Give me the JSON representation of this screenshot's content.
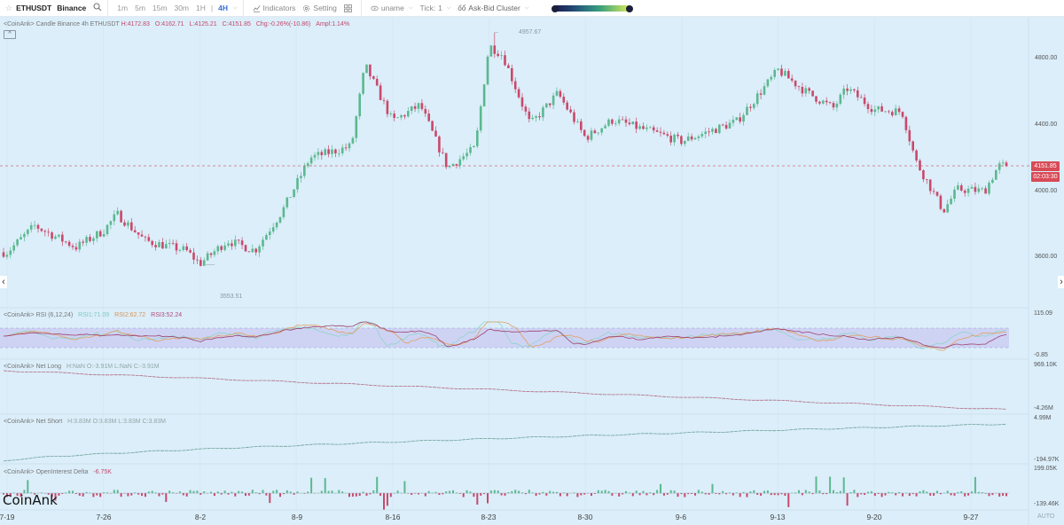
{
  "toolbar": {
    "star_icon": "☆",
    "symbol": "ETHUSDT",
    "exchange": "Binance",
    "search_icon": "search-icon",
    "timeframes": [
      "1m",
      "5m",
      "15m",
      "30m",
      "1H",
      "4H"
    ],
    "active_timeframe": "4H",
    "indicators_label": "Indicators",
    "setting_label": "Setting",
    "layout_icon": "grid-icon",
    "uname_label": "uname",
    "tick_label": "Tick:",
    "tick_value": "1",
    "cluster_label": "Ask-Bid Cluster"
  },
  "panes": {
    "candle": {
      "legend_prefix": "<CoinAnk> Candle  Binance 4h ETHUSDT",
      "h": "H:4172.83",
      "o": "O:4162.71",
      "l": "L:4125.21",
      "c": "C:4151.85",
      "chg": "Chg:-0.26%(-10.86)",
      "ampl": "Ampl:1.14%",
      "collapse_icon": "^",
      "high_label": "4957.67",
      "low_label": "3553.51",
      "last_price": "4151.85",
      "countdown": "02:03:30",
      "axis": [
        "4800.00",
        "4400.00",
        "4000.00",
        "3600.00"
      ]
    },
    "rsi": {
      "legend_prefix": "<CoinAnk> RSI  (6,12,24)",
      "rsi1": "RSI1:71.09",
      "rsi2": "RSI2:62.72",
      "rsi3": "RSI3:52.24",
      "axis_top": "115.09",
      "axis_bottom": "-0.85"
    },
    "net_long": {
      "legend_prefix": "<CoinAnk> Net Long",
      "values": "H:NaN  O:-3.91M  L:NaN  C:-3.91M",
      "axis_top": "969.10K",
      "axis_bottom": "-4.26M"
    },
    "net_short": {
      "legend_prefix": "<CoinAnk> Net Short",
      "values": "H:3.83M  O:3.83M  L:3.83M  C:3.83M",
      "axis_top": "4.99M",
      "axis_bottom": "-194.97K"
    },
    "oi_delta": {
      "legend_prefix": "<CoinAnk> OpenInterest Delta",
      "value": "-6.75K",
      "axis_top": "199.05K",
      "axis_bottom": "-139.46K"
    }
  },
  "x_axis": [
    "7-19",
    "7-26",
    "8-2",
    "8-9",
    "8-16",
    "8-23",
    "8-30",
    "9-6",
    "9-13",
    "9-20",
    "9-27"
  ],
  "logo": "CoinAnk",
  "auto_label": "AUTO",
  "colors": {
    "up": "#5cb88f",
    "down": "#c9496a",
    "background": "#dbeefa",
    "last_price": "#d94a57",
    "rsi_band": "#c9c9f2"
  },
  "chart_data": {
    "type": "candlestick",
    "title": "ETHUSDT Binance 4h",
    "x_ticks": [
      "7-19",
      "7-26",
      "8-2",
      "8-9",
      "8-16",
      "8-23",
      "8-30",
      "9-6",
      "9-13",
      "9-20",
      "9-27"
    ],
    "y_ticks": [
      4800,
      4400,
      4000,
      3600
    ],
    "ylim": [
      3500,
      5000
    ],
    "last_price": 4151.85,
    "period_high": 4957.67,
    "period_low": 3553.51,
    "price_path_anchors": [
      {
        "x": "7-19",
        "close": 3630
      },
      {
        "x": "7-21",
        "close": 3790
      },
      {
        "x": "7-24",
        "close": 3660
      },
      {
        "x": "7-26",
        "close": 3760
      },
      {
        "x": "7-27",
        "close": 3860
      },
      {
        "x": "7-29",
        "close": 3700
      },
      {
        "x": "8-1",
        "close": 3640
      },
      {
        "x": "8-2",
        "close": 3560
      },
      {
        "x": "8-4",
        "close": 3700
      },
      {
        "x": "8-6",
        "close": 3640
      },
      {
        "x": "8-8",
        "close": 3880
      },
      {
        "x": "8-10",
        "close": 4200
      },
      {
        "x": "8-13",
        "close": 4270
      },
      {
        "x": "8-14",
        "close": 4760
      },
      {
        "x": "8-16",
        "close": 4420
      },
      {
        "x": "8-18",
        "close": 4520
      },
      {
        "x": "8-20",
        "close": 4140
      },
      {
        "x": "8-22",
        "close": 4260
      },
      {
        "x": "8-23",
        "close": 4880
      },
      {
        "x": "8-24",
        "close": 4820
      },
      {
        "x": "8-26",
        "close": 4400
      },
      {
        "x": "8-28",
        "close": 4590
      },
      {
        "x": "8-30",
        "close": 4320
      },
      {
        "x": "9-1",
        "close": 4430
      },
      {
        "x": "9-6",
        "close": 4300
      },
      {
        "x": "9-10",
        "close": 4420
      },
      {
        "x": "9-13",
        "close": 4730
      },
      {
        "x": "9-15",
        "close": 4600
      },
      {
        "x": "9-17",
        "close": 4500
      },
      {
        "x": "9-18",
        "close": 4620
      },
      {
        "x": "9-20",
        "close": 4490
      },
      {
        "x": "9-22",
        "close": 4480
      },
      {
        "x": "9-23",
        "close": 4180
      },
      {
        "x": "9-25",
        "close": 3880
      },
      {
        "x": "9-26",
        "close": 4010
      },
      {
        "x": "9-28",
        "close": 4000
      },
      {
        "x": "9-29",
        "close": 4151.85
      }
    ],
    "rsi": {
      "params": [
        6,
        12,
        24
      ],
      "rsi1": 71.09,
      "rsi2": 62.72,
      "rsi3": 52.24,
      "ylim": [
        -0.85,
        115.09
      ]
    },
    "net_long": {
      "close": -3910000,
      "trend": "declining",
      "ylim": [
        -4260000,
        969100
      ]
    },
    "net_short": {
      "close": 3830000,
      "trend": "rising",
      "ylim": [
        -194970,
        4990000
      ]
    },
    "open_interest_delta": {
      "last": -6750,
      "ylim": [
        -139460,
        199050
      ],
      "type": "bar"
    }
  }
}
